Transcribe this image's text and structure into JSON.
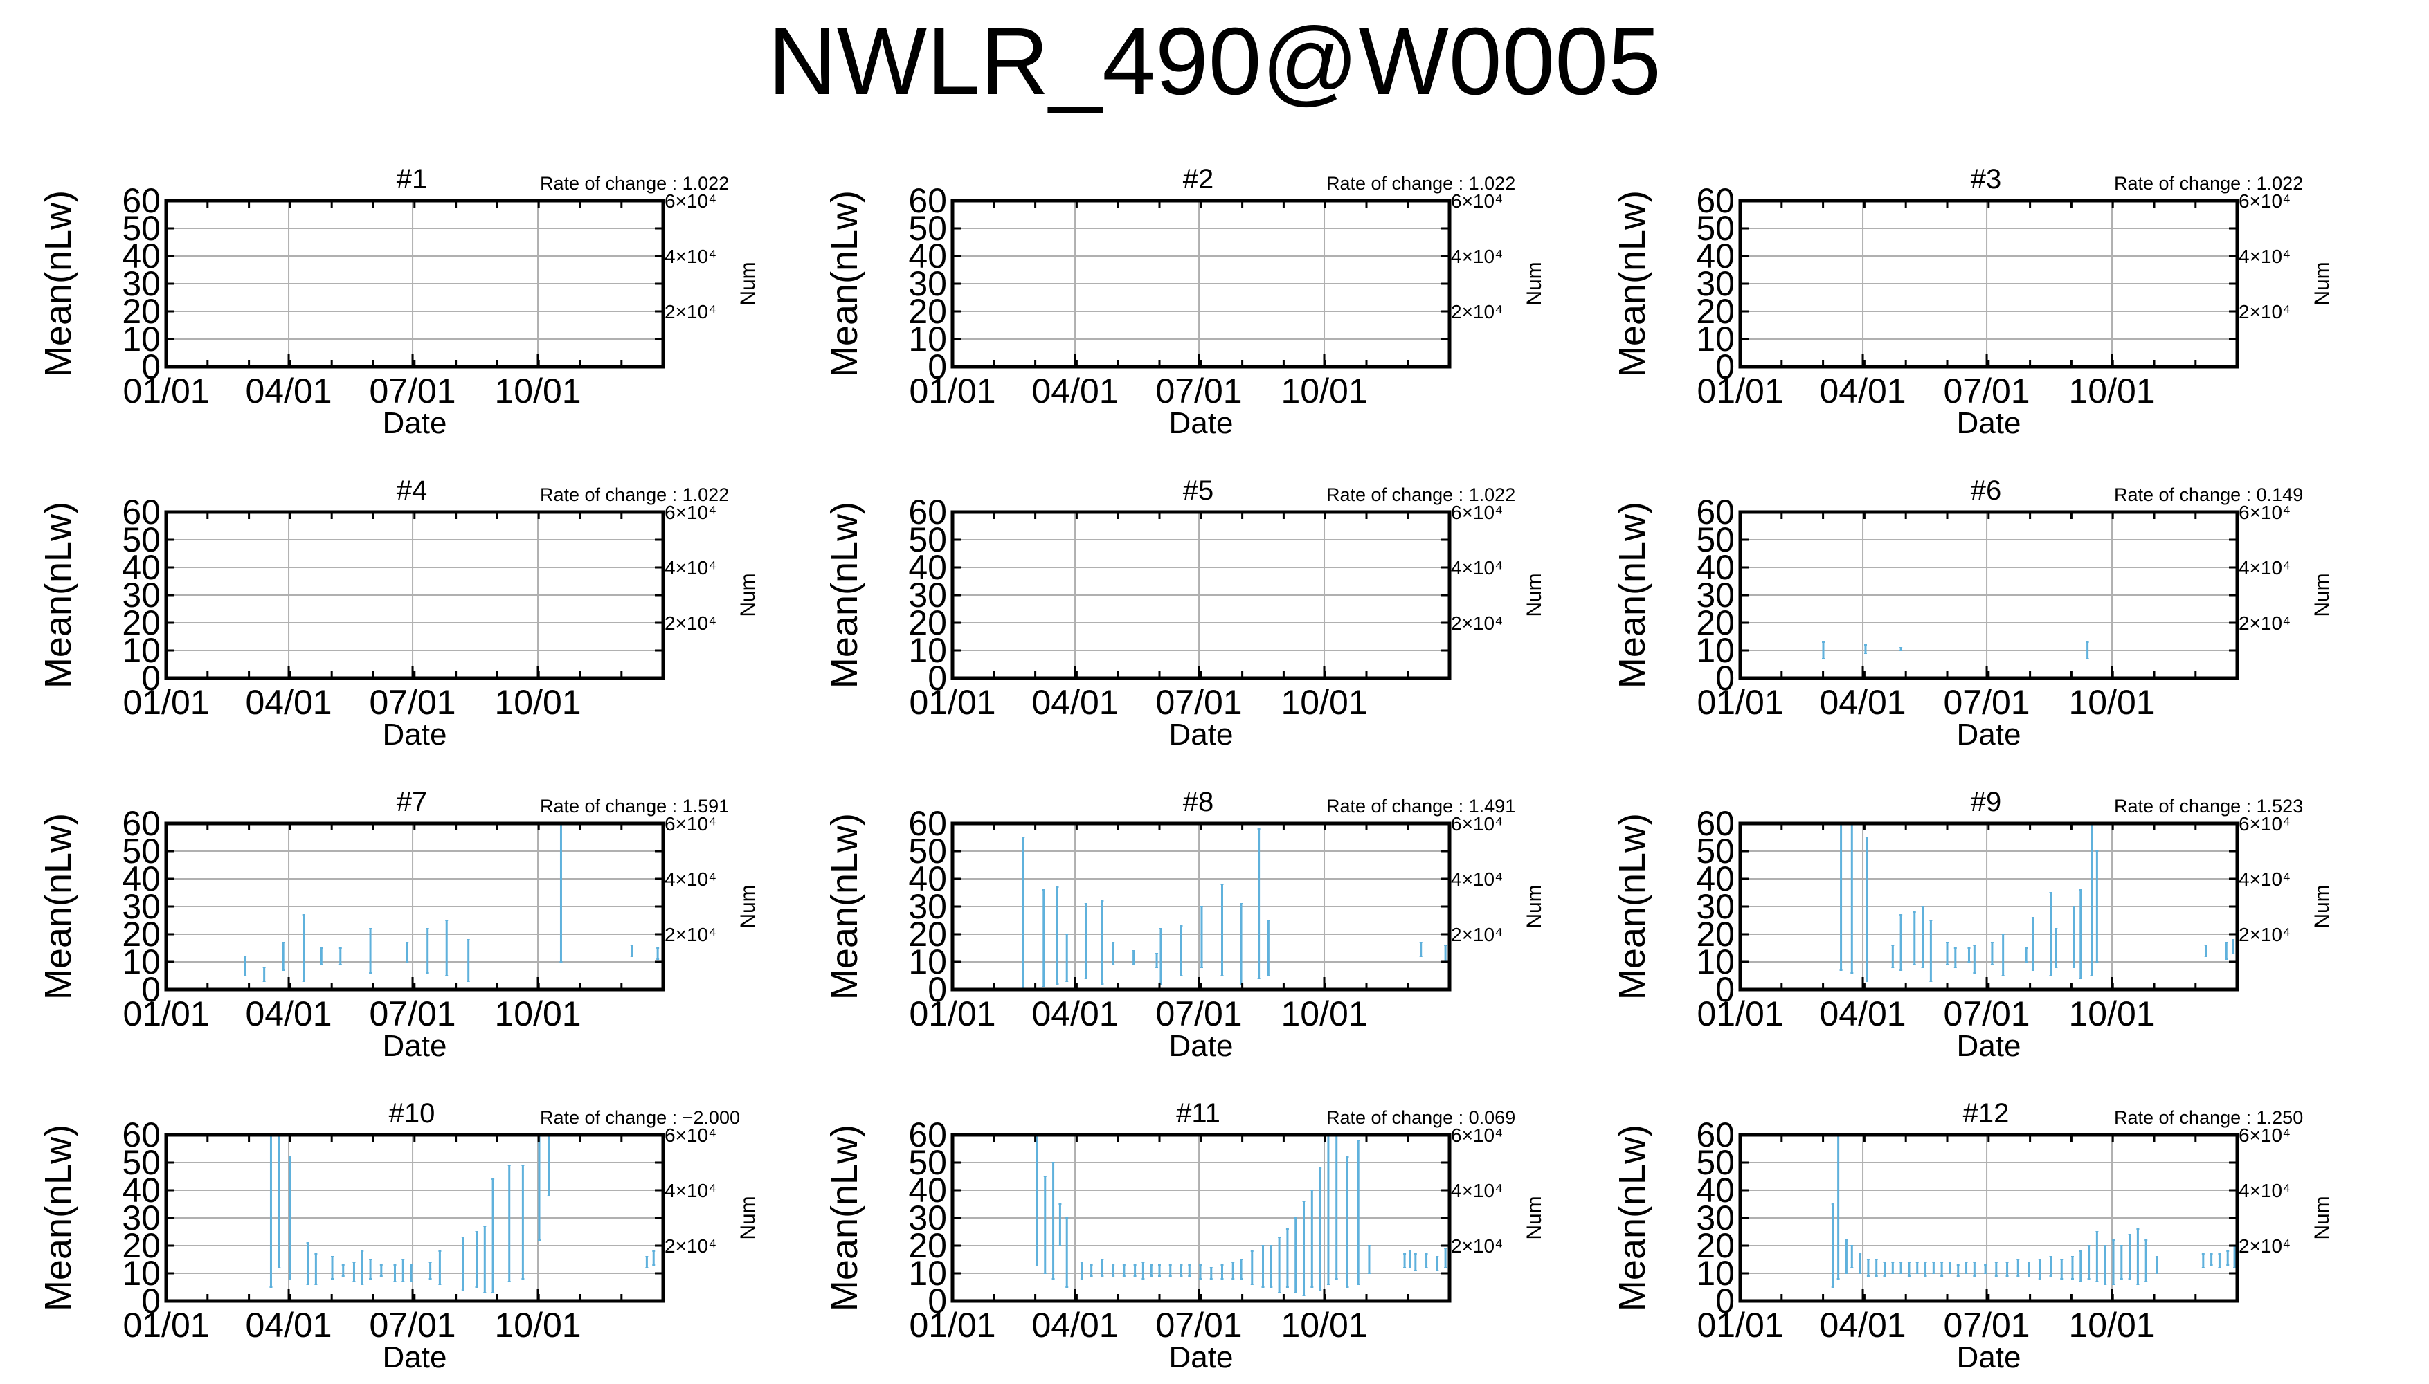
{
  "title": "NWLR_490@W0005",
  "chart_data": {
    "type": "small-multiples-errorbar",
    "xlabel": "Date",
    "ylabel": "Mean(nLw)",
    "y2label": "Num",
    "ylim": [
      0,
      60
    ],
    "yticks": [
      "0",
      "10",
      "20",
      "30",
      "40",
      "50",
      "60"
    ],
    "xlim": [
      "01/01",
      "12/31"
    ],
    "xticks": [
      "01/01",
      "04/01",
      "07/01",
      "10/01"
    ],
    "y2ticks": [
      "2×10⁴",
      "4×10⁴",
      "6×10⁴"
    ],
    "rate_prefix": "Rate of change : ",
    "grid": true,
    "series_color": "#5fb1dc",
    "panels": [
      {
        "name": "#1",
        "rate": "1.022",
        "bars": []
      },
      {
        "name": "#2",
        "rate": "1.022",
        "bars": []
      },
      {
        "name": "#3",
        "rate": "1.022",
        "bars": []
      },
      {
        "name": "#4",
        "rate": "1.022",
        "bars": []
      },
      {
        "name": "#5",
        "rate": "1.022",
        "bars": []
      },
      {
        "name": "#6",
        "rate": "0.149",
        "bars": [
          {
            "x": 61,
            "lo": 7,
            "hi": 13
          },
          {
            "x": 92,
            "lo": 9,
            "hi": 12
          },
          {
            "x": 118,
            "lo": 10,
            "hi": 11
          },
          {
            "x": 255,
            "lo": 7,
            "hi": 13
          }
        ]
      },
      {
        "name": "#7",
        "rate": "1.591",
        "bars": [
          {
            "x": 58,
            "lo": 5,
            "hi": 12
          },
          {
            "x": 72,
            "lo": 3,
            "hi": 8
          },
          {
            "x": 86,
            "lo": 7,
            "hi": 17
          },
          {
            "x": 101,
            "lo": 3,
            "hi": 27
          },
          {
            "x": 114,
            "lo": 9,
            "hi": 15
          },
          {
            "x": 128,
            "lo": 9,
            "hi": 15
          },
          {
            "x": 150,
            "lo": 6,
            "hi": 22
          },
          {
            "x": 177,
            "lo": 10,
            "hi": 17
          },
          {
            "x": 192,
            "lo": 6,
            "hi": 22
          },
          {
            "x": 206,
            "lo": 5,
            "hi": 25
          },
          {
            "x": 222,
            "lo": 3,
            "hi": 18
          },
          {
            "x": 290,
            "lo": 10,
            "hi": 60
          },
          {
            "x": 342,
            "lo": 12,
            "hi": 16
          },
          {
            "x": 361,
            "lo": 11,
            "hi": 15
          }
        ]
      },
      {
        "name": "#8",
        "rate": "1.491",
        "bars": [
          {
            "x": 52,
            "lo": 0,
            "hi": 55
          },
          {
            "x": 67,
            "lo": 1,
            "hi": 36
          },
          {
            "x": 77,
            "lo": 2,
            "hi": 37
          },
          {
            "x": 84,
            "lo": 3,
            "hi": 20
          },
          {
            "x": 98,
            "lo": 4,
            "hi": 31
          },
          {
            "x": 110,
            "lo": 2,
            "hi": 32
          },
          {
            "x": 118,
            "lo": 9,
            "hi": 17
          },
          {
            "x": 133,
            "lo": 9,
            "hi": 14
          },
          {
            "x": 150,
            "lo": 8,
            "hi": 13
          },
          {
            "x": 153,
            "lo": 2,
            "hi": 22
          },
          {
            "x": 168,
            "lo": 5,
            "hi": 23
          },
          {
            "x": 183,
            "lo": 8,
            "hi": 30
          },
          {
            "x": 198,
            "lo": 5,
            "hi": 38
          },
          {
            "x": 212,
            "lo": 2,
            "hi": 31
          },
          {
            "x": 225,
            "lo": 4,
            "hi": 58
          },
          {
            "x": 232,
            "lo": 5,
            "hi": 25
          },
          {
            "x": 344,
            "lo": 12,
            "hi": 17
          },
          {
            "x": 362,
            "lo": 10,
            "hi": 16
          }
        ]
      },
      {
        "name": "#9",
        "rate": "1.523",
        "bars": [
          {
            "x": 74,
            "lo": 7,
            "hi": 60
          },
          {
            "x": 82,
            "lo": 6,
            "hi": 60
          },
          {
            "x": 93,
            "lo": 3,
            "hi": 55
          },
          {
            "x": 112,
            "lo": 8,
            "hi": 16
          },
          {
            "x": 118,
            "lo": 7,
            "hi": 27
          },
          {
            "x": 128,
            "lo": 9,
            "hi": 28
          },
          {
            "x": 134,
            "lo": 8,
            "hi": 30
          },
          {
            "x": 140,
            "lo": 3,
            "hi": 25
          },
          {
            "x": 152,
            "lo": 9,
            "hi": 17
          },
          {
            "x": 158,
            "lo": 8,
            "hi": 15
          },
          {
            "x": 168,
            "lo": 10,
            "hi": 15
          },
          {
            "x": 172,
            "lo": 6,
            "hi": 16
          },
          {
            "x": 185,
            "lo": 9,
            "hi": 17
          },
          {
            "x": 193,
            "lo": 5,
            "hi": 20
          },
          {
            "x": 210,
            "lo": 10,
            "hi": 15
          },
          {
            "x": 215,
            "lo": 7,
            "hi": 26
          },
          {
            "x": 228,
            "lo": 5,
            "hi": 35
          },
          {
            "x": 232,
            "lo": 8,
            "hi": 22
          },
          {
            "x": 245,
            "lo": 8,
            "hi": 30
          },
          {
            "x": 250,
            "lo": 4,
            "hi": 36
          },
          {
            "x": 258,
            "lo": 5,
            "hi": 60
          },
          {
            "x": 262,
            "lo": 10,
            "hi": 50
          },
          {
            "x": 342,
            "lo": 12,
            "hi": 16
          },
          {
            "x": 357,
            "lo": 11,
            "hi": 17
          },
          {
            "x": 362,
            "lo": 13,
            "hi": 18
          }
        ]
      },
      {
        "name": "#10",
        "rate": "−2.000",
        "bars": [
          {
            "x": 77,
            "lo": 5,
            "hi": 60
          },
          {
            "x": 83,
            "lo": 12,
            "hi": 60
          },
          {
            "x": 91,
            "lo": 8,
            "hi": 52
          },
          {
            "x": 104,
            "lo": 6,
            "hi": 21
          },
          {
            "x": 110,
            "lo": 6,
            "hi": 17
          },
          {
            "x": 122,
            "lo": 8,
            "hi": 16
          },
          {
            "x": 130,
            "lo": 9,
            "hi": 13
          },
          {
            "x": 138,
            "lo": 7,
            "hi": 14
          },
          {
            "x": 144,
            "lo": 6,
            "hi": 18
          },
          {
            "x": 150,
            "lo": 8,
            "hi": 15
          },
          {
            "x": 158,
            "lo": 9,
            "hi": 13
          },
          {
            "x": 168,
            "lo": 7,
            "hi": 13
          },
          {
            "x": 174,
            "lo": 7,
            "hi": 15
          },
          {
            "x": 180,
            "lo": 7,
            "hi": 13
          },
          {
            "x": 194,
            "lo": 8,
            "hi": 14
          },
          {
            "x": 201,
            "lo": 6,
            "hi": 18
          },
          {
            "x": 218,
            "lo": 4,
            "hi": 23
          },
          {
            "x": 228,
            "lo": 5,
            "hi": 25
          },
          {
            "x": 234,
            "lo": 3,
            "hi": 27
          },
          {
            "x": 240,
            "lo": 3,
            "hi": 44
          },
          {
            "x": 252,
            "lo": 7,
            "hi": 49
          },
          {
            "x": 262,
            "lo": 8,
            "hi": 49
          },
          {
            "x": 274,
            "lo": 22,
            "hi": 60
          },
          {
            "x": 281,
            "lo": 38,
            "hi": 60
          },
          {
            "x": 353,
            "lo": 12,
            "hi": 16
          },
          {
            "x": 358,
            "lo": 13,
            "hi": 18
          }
        ]
      },
      {
        "name": "#11",
        "rate": "0.069",
        "bars": [
          {
            "x": 62,
            "lo": 13,
            "hi": 60
          },
          {
            "x": 68,
            "lo": 10,
            "hi": 45
          },
          {
            "x": 74,
            "lo": 8,
            "hi": 50
          },
          {
            "x": 79,
            "lo": 20,
            "hi": 35
          },
          {
            "x": 84,
            "lo": 5,
            "hi": 30
          },
          {
            "x": 95,
            "lo": 8,
            "hi": 14
          },
          {
            "x": 102,
            "lo": 9,
            "hi": 13
          },
          {
            "x": 110,
            "lo": 9,
            "hi": 15
          },
          {
            "x": 118,
            "lo": 9,
            "hi": 13
          },
          {
            "x": 126,
            "lo": 9,
            "hi": 13
          },
          {
            "x": 134,
            "lo": 9,
            "hi": 13
          },
          {
            "x": 140,
            "lo": 8,
            "hi": 14
          },
          {
            "x": 146,
            "lo": 9,
            "hi": 13
          },
          {
            "x": 152,
            "lo": 9,
            "hi": 13
          },
          {
            "x": 160,
            "lo": 9,
            "hi": 13
          },
          {
            "x": 168,
            "lo": 9,
            "hi": 13
          },
          {
            "x": 174,
            "lo": 9,
            "hi": 13
          },
          {
            "x": 182,
            "lo": 8,
            "hi": 13
          },
          {
            "x": 190,
            "lo": 8,
            "hi": 12
          },
          {
            "x": 198,
            "lo": 8,
            "hi": 13
          },
          {
            "x": 206,
            "lo": 8,
            "hi": 14
          },
          {
            "x": 212,
            "lo": 8,
            "hi": 15
          },
          {
            "x": 220,
            "lo": 6,
            "hi": 18
          },
          {
            "x": 228,
            "lo": 5,
            "hi": 20
          },
          {
            "x": 234,
            "lo": 5,
            "hi": 20
          },
          {
            "x": 240,
            "lo": 3,
            "hi": 23
          },
          {
            "x": 246,
            "lo": 5,
            "hi": 26
          },
          {
            "x": 252,
            "lo": 3,
            "hi": 30
          },
          {
            "x": 258,
            "lo": 2,
            "hi": 36
          },
          {
            "x": 264,
            "lo": 5,
            "hi": 40
          },
          {
            "x": 270,
            "lo": 4,
            "hi": 48
          },
          {
            "x": 276,
            "lo": 6,
            "hi": 60
          },
          {
            "x": 282,
            "lo": 8,
            "hi": 60
          },
          {
            "x": 290,
            "lo": 5,
            "hi": 52
          },
          {
            "x": 298,
            "lo": 6,
            "hi": 58
          },
          {
            "x": 306,
            "lo": 10,
            "hi": 20
          },
          {
            "x": 332,
            "lo": 12,
            "hi": 17
          },
          {
            "x": 336,
            "lo": 12,
            "hi": 18
          },
          {
            "x": 340,
            "lo": 11,
            "hi": 17
          },
          {
            "x": 348,
            "lo": 12,
            "hi": 17
          },
          {
            "x": 356,
            "lo": 11,
            "hi": 16
          },
          {
            "x": 362,
            "lo": 12,
            "hi": 19
          }
        ]
      },
      {
        "name": "#12",
        "rate": "1.250",
        "bars": [
          {
            "x": 68,
            "lo": 5,
            "hi": 35
          },
          {
            "x": 72,
            "lo": 8,
            "hi": 60
          },
          {
            "x": 78,
            "lo": 10,
            "hi": 22
          },
          {
            "x": 82,
            "lo": 12,
            "hi": 20
          },
          {
            "x": 88,
            "lo": 10,
            "hi": 17
          },
          {
            "x": 94,
            "lo": 9,
            "hi": 15
          },
          {
            "x": 100,
            "lo": 9,
            "hi": 15
          },
          {
            "x": 106,
            "lo": 9,
            "hi": 14
          },
          {
            "x": 112,
            "lo": 10,
            "hi": 14
          },
          {
            "x": 118,
            "lo": 10,
            "hi": 14
          },
          {
            "x": 124,
            "lo": 9,
            "hi": 14
          },
          {
            "x": 130,
            "lo": 10,
            "hi": 14
          },
          {
            "x": 136,
            "lo": 9,
            "hi": 14
          },
          {
            "x": 142,
            "lo": 10,
            "hi": 14
          },
          {
            "x": 148,
            "lo": 9,
            "hi": 14
          },
          {
            "x": 154,
            "lo": 10,
            "hi": 14
          },
          {
            "x": 160,
            "lo": 9,
            "hi": 13
          },
          {
            "x": 166,
            "lo": 10,
            "hi": 14
          },
          {
            "x": 172,
            "lo": 9,
            "hi": 14
          },
          {
            "x": 180,
            "lo": 10,
            "hi": 13
          },
          {
            "x": 188,
            "lo": 9,
            "hi": 14
          },
          {
            "x": 196,
            "lo": 9,
            "hi": 14
          },
          {
            "x": 204,
            "lo": 9,
            "hi": 15
          },
          {
            "x": 212,
            "lo": 9,
            "hi": 14
          },
          {
            "x": 220,
            "lo": 8,
            "hi": 15
          },
          {
            "x": 228,
            "lo": 9,
            "hi": 16
          },
          {
            "x": 236,
            "lo": 8,
            "hi": 15
          },
          {
            "x": 244,
            "lo": 8,
            "hi": 16
          },
          {
            "x": 250,
            "lo": 7,
            "hi": 18
          },
          {
            "x": 256,
            "lo": 8,
            "hi": 20
          },
          {
            "x": 262,
            "lo": 7,
            "hi": 25
          },
          {
            "x": 268,
            "lo": 6,
            "hi": 20
          },
          {
            "x": 274,
            "lo": 6,
            "hi": 22
          },
          {
            "x": 280,
            "lo": 8,
            "hi": 20
          },
          {
            "x": 286,
            "lo": 8,
            "hi": 24
          },
          {
            "x": 292,
            "lo": 6,
            "hi": 26
          },
          {
            "x": 298,
            "lo": 7,
            "hi": 22
          },
          {
            "x": 306,
            "lo": 10,
            "hi": 16
          },
          {
            "x": 340,
            "lo": 12,
            "hi": 17
          },
          {
            "x": 346,
            "lo": 13,
            "hi": 17
          },
          {
            "x": 352,
            "lo": 12,
            "hi": 17
          },
          {
            "x": 358,
            "lo": 13,
            "hi": 18
          },
          {
            "x": 363,
            "lo": 12,
            "hi": 20
          }
        ]
      }
    ]
  }
}
